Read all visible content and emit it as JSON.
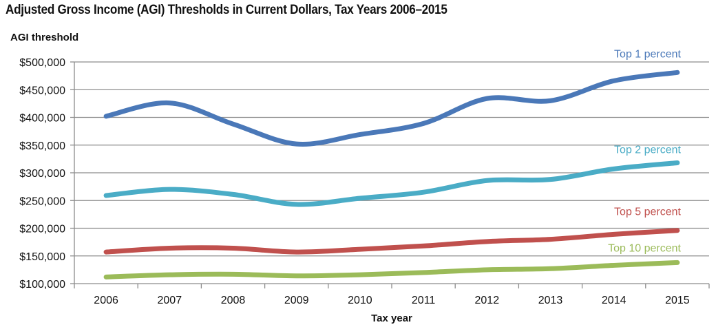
{
  "title": "Adjusted Gross Income (AGI) Thresholds in Current Dollars, Tax Years 2006–2015",
  "chart_data": {
    "type": "line",
    "ylabel": "AGI threshold",
    "xlabel": "Tax year",
    "ylim": [
      100000,
      500000
    ],
    "yticks": [
      100000,
      150000,
      200000,
      250000,
      300000,
      350000,
      400000,
      450000,
      500000
    ],
    "ytick_labels": [
      "$100,000",
      "$150,000",
      "$200,000",
      "$250,000",
      "$300,000",
      "$350,000",
      "$400,000",
      "$450,000",
      "$500,000"
    ],
    "categories": [
      "2006",
      "2007",
      "2008",
      "2009",
      "2010",
      "2011",
      "2012",
      "2013",
      "2014",
      "2015"
    ],
    "grid": true,
    "legend": "inline labels at right end of lines",
    "series": [
      {
        "name": "Top 1 percent",
        "color": "#4a78b8",
        "values": [
          402000,
          426000,
          388000,
          352000,
          369000,
          389000,
          434000,
          430000,
          466000,
          481000
        ]
      },
      {
        "name": "Top 2 percent",
        "color": "#4aacc6",
        "values": [
          259000,
          270000,
          261000,
          243000,
          254000,
          265000,
          286000,
          288000,
          307000,
          318000
        ]
      },
      {
        "name": "Top 5 percent",
        "color": "#c0504d",
        "values": [
          157000,
          164000,
          164000,
          157000,
          162000,
          168000,
          176000,
          180000,
          189000,
          196000
        ]
      },
      {
        "name": "Top 10 percent",
        "color": "#9bbb59",
        "values": [
          112000,
          116000,
          117000,
          114000,
          116000,
          120000,
          125000,
          127000,
          133000,
          138000
        ]
      }
    ]
  }
}
